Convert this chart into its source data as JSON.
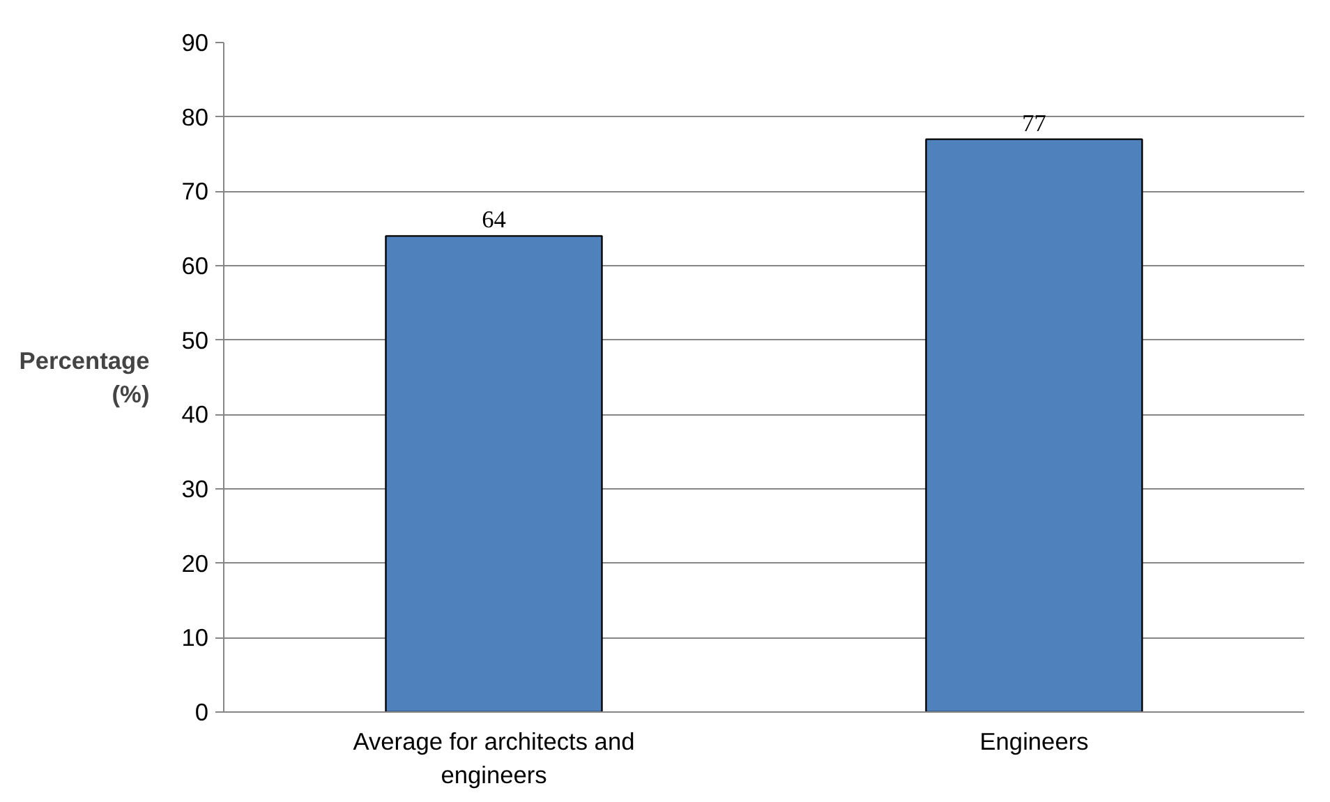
{
  "chart_data": {
    "type": "bar",
    "ylabel": "Percentage (%)",
    "categories": [
      "Average for architects and engineers",
      "Engineers"
    ],
    "values": [
      64,
      77
    ],
    "color": "#4f81bd",
    "ylim": [
      0,
      90
    ],
    "yticks": [
      0,
      10,
      20,
      30,
      40,
      50,
      60,
      70,
      80,
      90
    ],
    "grid": "y",
    "data_labels": true
  }
}
